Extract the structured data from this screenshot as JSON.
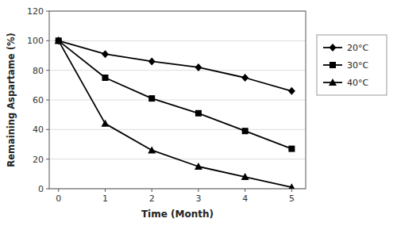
{
  "chart_data": {
    "type": "line",
    "x": [
      0,
      1,
      2,
      3,
      4,
      5
    ],
    "series": [
      {
        "name": "20°C",
        "values": [
          100,
          91,
          86,
          82,
          75,
          66
        ],
        "color": "#000000",
        "marker": "diamond"
      },
      {
        "name": "30°C",
        "values": [
          100,
          75,
          61,
          51,
          39,
          27
        ],
        "color": "#000000",
        "marker": "square"
      },
      {
        "name": "40°C",
        "values": [
          100,
          44,
          26,
          15,
          8,
          1
        ],
        "color": "#000000",
        "marker": "triangle"
      }
    ],
    "xlabel": "Time (Month)",
    "ylabel": "Remaining Aspartame (%)",
    "xlim": [
      -0.2,
      5.3
    ],
    "ylim": [
      0,
      120
    ],
    "xticks": [
      0,
      1,
      2,
      3,
      4,
      5
    ],
    "yticks": [
      0,
      20,
      40,
      60,
      80,
      100,
      120
    ],
    "grid": true,
    "legend": "right"
  }
}
